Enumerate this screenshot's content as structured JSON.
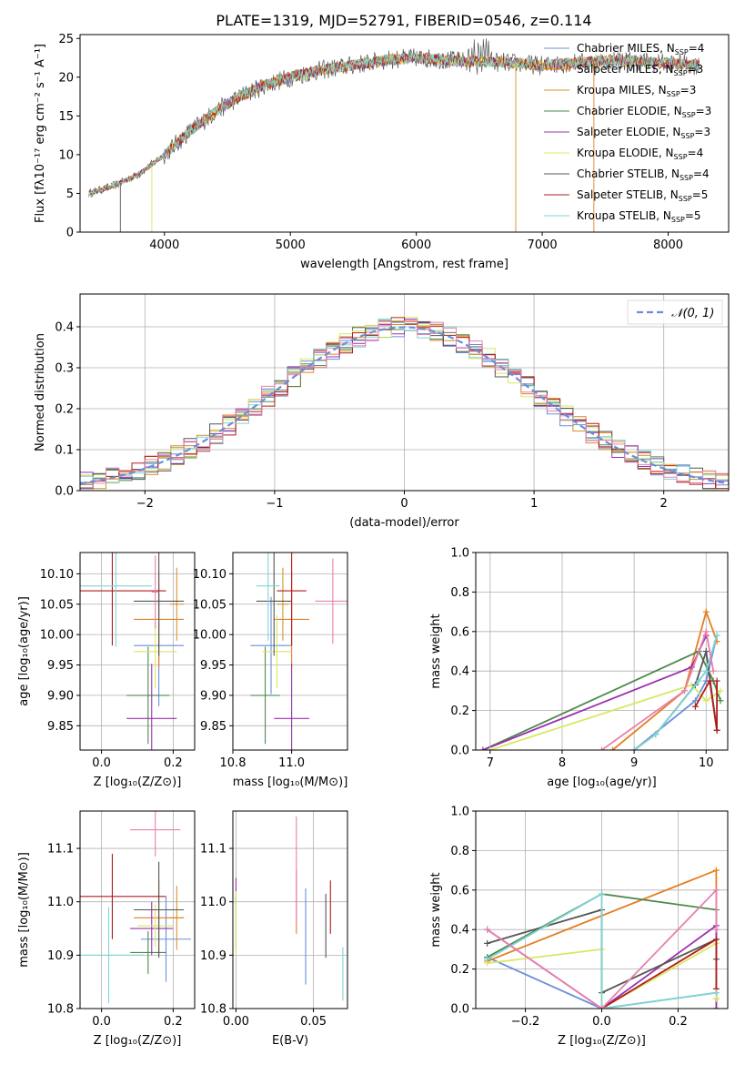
{
  "figure": {
    "title": "PLATE=1319, MJD=52791, FIBERID=0546, z=0.114"
  },
  "colors": {
    "c0": "#6a8fd8",
    "c1": "#e67e22",
    "c2": "#d4922a",
    "c3": "#4e8a4e",
    "c4": "#9b30b0",
    "c5": "#d8e860",
    "c6": "#555555",
    "c7": "#b01c1c",
    "c8": "#7fd4d4",
    "c9": "#e87fb0"
  },
  "chart_data": [
    {
      "id": "spectrum",
      "type": "line",
      "title": "PLATE=1319, MJD=52791, FIBERID=0546, z=0.114",
      "xlabel": "wavelength [Angstrom, rest frame]",
      "ylabel": "Flux [fλ10⁻¹⁷ erg cm⁻² s⁻¹ A⁻¹]",
      "xlim": [
        3330,
        8480
      ],
      "ylim": [
        0,
        25.5
      ],
      "xticks": [
        4000,
        5000,
        6000,
        7000,
        8000
      ],
      "yticks": [
        0,
        5,
        10,
        15,
        20,
        25
      ],
      "grid": false,
      "legend_position": "top-right",
      "continuum": {
        "x": [
          3400,
          3600,
          3800,
          4000,
          4200,
          4400,
          4600,
          4800,
          5000,
          5200,
          5400,
          5600,
          5800,
          6000,
          6200,
          6400,
          6600,
          6800,
          7000,
          7200,
          7400,
          7600,
          7800,
          8000,
          8250
        ],
        "y": [
          5.0,
          6.0,
          7.5,
          10.0,
          13.0,
          15.5,
          17.5,
          19.0,
          20.0,
          20.8,
          21.3,
          21.8,
          22.3,
          22.5,
          22.3,
          22.0,
          22.0,
          21.8,
          21.5,
          21.8,
          22.0,
          22.2,
          22.0,
          21.8,
          21.5
        ]
      },
      "legend": [
        {
          "label": "Chabrier MILES, N",
          "sub": "SSP",
          "suffix": "=4",
          "color": "#6a8fd8"
        },
        {
          "label": "Salpeter MILES, N",
          "sub": "SSP",
          "suffix": "=3",
          "color": "#e67e22"
        },
        {
          "label": "Kroupa MILES, N",
          "sub": "SSP",
          "suffix": "=3",
          "color": "#d4922a"
        },
        {
          "label": "Chabrier ELODIE, N",
          "sub": "SSP",
          "suffix": "=3",
          "color": "#4e8a4e"
        },
        {
          "label": "Salpeter ELODIE, N",
          "sub": "SSP",
          "suffix": "=3",
          "color": "#9b30b0"
        },
        {
          "label": "Kroupa ELODIE, N",
          "sub": "SSP",
          "suffix": "=4",
          "color": "#d8e860"
        },
        {
          "label": "Chabrier STELIB, N",
          "sub": "SSP",
          "suffix": "=4",
          "color": "#555555"
        },
        {
          "label": "Salpeter STELIB, N",
          "sub": "SSP",
          "suffix": "=5",
          "color": "#b01c1c"
        },
        {
          "label": "Kroupa STELIB, N",
          "sub": "SSP",
          "suffix": "=5",
          "color": "#7fd4d4"
        }
      ]
    },
    {
      "id": "residuals",
      "type": "line",
      "xlabel": "(data-model)/error",
      "ylabel": "Normed distribution",
      "xlim": [
        -2.5,
        2.5
      ],
      "ylim": [
        0,
        0.48
      ],
      "xticks": [
        -2,
        -1,
        0,
        1,
        2
      ],
      "yticks": [
        0.0,
        0.1,
        0.2,
        0.3,
        0.4
      ],
      "grid": true,
      "legend_position": "top-right",
      "legend": [
        {
          "label": "𝒩(0, 1)",
          "color": "#6a8fd8",
          "style": "dashed"
        }
      ],
      "gaussian": {
        "mean": 0,
        "sigma": 1
      },
      "hist_bin_width": 0.1
    },
    {
      "id": "age-vs-Z",
      "type": "errorbar",
      "xlabel": "Z [log₁₀(Z/Z⊙)]",
      "ylabel": "age  [log₁₀(age/yr)]",
      "xlim": [
        -0.06,
        0.26
      ],
      "ylim": [
        9.81,
        10.135
      ],
      "xticks": [
        0.0,
        0.2
      ],
      "yticks": [
        9.85,
        9.9,
        9.95,
        10.0,
        10.05,
        10.1
      ],
      "grid": true,
      "points": [
        {
          "x": 0.16,
          "y": 9.982,
          "xerr": 0.07,
          "yerr": 0.1,
          "color": "#6a8fd8"
        },
        {
          "x": 0.16,
          "y": 10.025,
          "xerr": 0.07,
          "yerr": 0.08,
          "color": "#e67e22"
        },
        {
          "x": 0.21,
          "y": 10.05,
          "xerr": 0.02,
          "yerr": 0.06,
          "color": "#d4922a"
        },
        {
          "x": 0.13,
          "y": 9.9,
          "xerr": 0.06,
          "yerr": 0.08,
          "color": "#4e8a4e"
        },
        {
          "x": 0.14,
          "y": 9.862,
          "xerr": 0.07,
          "yerr": 0.09,
          "color": "#9b30b0"
        },
        {
          "x": 0.15,
          "y": 9.972,
          "xerr": 0.06,
          "yerr": 0.06,
          "color": "#d8e860"
        },
        {
          "x": 0.16,
          "y": 10.055,
          "xerr": 0.07,
          "yerr": 0.09,
          "color": "#555555"
        },
        {
          "x": 0.03,
          "y": 10.072,
          "xerr": 0.15,
          "yerr": 0.09,
          "color": "#b01c1c"
        },
        {
          "x": 0.04,
          "y": 10.08,
          "xerr": 0.1,
          "yerr": 0.1,
          "color": "#7fd4d4"
        },
        {
          "x": 0.15,
          "y": 10.07,
          "xerr": 0.01,
          "yerr": 0.06,
          "color": "#e87fb0"
        }
      ]
    },
    {
      "id": "age-vs-mass",
      "type": "errorbar",
      "xlabel": "mass [log₁₀(M/M⊙)]",
      "ylabel": "",
      "xlim": [
        10.8,
        11.19
      ],
      "ylim": [
        9.81,
        10.135
      ],
      "xticks": [
        10.8,
        11.0
      ],
      "yticks": [
        9.85,
        9.9,
        9.95,
        10.0,
        10.05,
        10.1
      ],
      "grid": true,
      "points": [
        {
          "x": 10.93,
          "y": 9.982,
          "xerr": 0.07,
          "yerr": 0.08,
          "color": "#6a8fd8"
        },
        {
          "x": 11.0,
          "y": 10.025,
          "xerr": 0.06,
          "yerr": 0.08,
          "color": "#e67e22"
        },
        {
          "x": 10.97,
          "y": 10.05,
          "xerr": 0.02,
          "yerr": 0.06,
          "color": "#d4922a"
        },
        {
          "x": 10.91,
          "y": 9.9,
          "xerr": 0.05,
          "yerr": 0.08,
          "color": "#4e8a4e"
        },
        {
          "x": 11.0,
          "y": 9.862,
          "xerr": 0.06,
          "yerr": 0.09,
          "color": "#9b30b0"
        },
        {
          "x": 10.95,
          "y": 9.972,
          "xerr": 0.05,
          "yerr": 0.06,
          "color": "#d8e860"
        },
        {
          "x": 10.94,
          "y": 10.055,
          "xerr": 0.06,
          "yerr": 0.09,
          "color": "#555555"
        },
        {
          "x": 11.0,
          "y": 10.072,
          "xerr": 0.05,
          "yerr": 0.09,
          "color": "#b01c1c"
        },
        {
          "x": 10.92,
          "y": 10.08,
          "xerr": 0.04,
          "yerr": 0.09,
          "color": "#7fd4d4"
        },
        {
          "x": 11.14,
          "y": 10.055,
          "xerr": 0.06,
          "yerr": 0.07,
          "color": "#e87fb0"
        }
      ]
    },
    {
      "id": "mass-weight-vs-age",
      "type": "line",
      "xlabel": "age  [log₁₀(age/yr)]",
      "ylabel": "mass weight",
      "xlim": [
        6.8,
        10.3
      ],
      "ylim": [
        0,
        1
      ],
      "xticks": [
        7,
        8,
        9,
        10
      ],
      "yticks": [
        0.0,
        0.2,
        0.4,
        0.6,
        0.8,
        1.0
      ],
      "grid": true,
      "series": [
        {
          "x": [
            9.0,
            9.85,
            10.0,
            10.15
          ],
          "y": [
            0.0,
            0.25,
            0.35,
            0.58
          ],
          "color": "#6a8fd8"
        },
        {
          "x": [
            8.7,
            9.7,
            10.0,
            10.15
          ],
          "y": [
            0.0,
            0.3,
            0.7,
            0.55
          ],
          "color": "#e67e22"
        },
        {
          "x": [
            6.9,
            9.9,
            10.1,
            10.2
          ],
          "y": [
            0.0,
            0.5,
            0.35,
            0.25
          ],
          "color": "#4e8a4e"
        },
        {
          "x": [
            6.9,
            9.8,
            10.0
          ],
          "y": [
            0.0,
            0.42,
            0.58
          ],
          "color": "#9b30b0"
        },
        {
          "x": [
            7.0,
            9.8,
            10.0,
            10.2
          ],
          "y": [
            0.0,
            0.33,
            0.25,
            0.3
          ],
          "color": "#d8e860"
        },
        {
          "x": [
            9.0,
            9.3,
            9.85,
            10.0,
            10.15
          ],
          "y": [
            0.0,
            0.08,
            0.33,
            0.5,
            0.1
          ],
          "color": "#555555"
        },
        {
          "x": [
            9.85,
            10.05,
            10.15,
            10.15
          ],
          "y": [
            0.22,
            0.35,
            0.1,
            0.35
          ],
          "color": "#b01c1c"
        },
        {
          "x": [
            9.0,
            9.3,
            9.9,
            10.0,
            10.15
          ],
          "y": [
            0.0,
            0.08,
            0.35,
            0.4,
            0.58
          ],
          "color": "#7fd4d4"
        },
        {
          "x": [
            8.55,
            9.7,
            10.0,
            10.1
          ],
          "y": [
            0.0,
            0.3,
            0.6,
            0.4
          ],
          "color": "#e87fb0"
        }
      ]
    },
    {
      "id": "mass-vs-Z",
      "type": "errorbar",
      "xlabel": "Z [log₁₀(Z/Z⊙)]",
      "ylabel": "mass [log₁₀(M/M⊙)]",
      "xlim": [
        -0.06,
        0.26
      ],
      "ylim": [
        10.8,
        11.17
      ],
      "xticks": [
        0.0,
        0.2
      ],
      "yticks": [
        10.8,
        10.9,
        11.0,
        11.1
      ],
      "grid": true,
      "points": [
        {
          "x": 0.18,
          "y": 10.93,
          "xerr": 0.07,
          "yerr": 0.08,
          "color": "#6a8fd8"
        },
        {
          "x": 0.16,
          "y": 10.97,
          "xerr": 0.07,
          "yerr": 0.07,
          "color": "#e67e22"
        },
        {
          "x": 0.21,
          "y": 10.97,
          "xerr": 0.02,
          "yerr": 0.06,
          "color": "#d4922a"
        },
        {
          "x": 0.13,
          "y": 10.905,
          "xerr": 0.05,
          "yerr": 0.04,
          "color": "#4e8a4e"
        },
        {
          "x": 0.14,
          "y": 10.95,
          "xerr": 0.06,
          "yerr": 0.05,
          "color": "#9b30b0"
        },
        {
          "x": 0.15,
          "y": 10.955,
          "xerr": 0.05,
          "yerr": 0.04,
          "color": "#d8e860"
        },
        {
          "x": 0.16,
          "y": 10.985,
          "xerr": 0.07,
          "yerr": 0.09,
          "color": "#555555"
        },
        {
          "x": 0.03,
          "y": 11.01,
          "xerr": 0.15,
          "yerr": 0.08,
          "color": "#b01c1c"
        },
        {
          "x": 0.02,
          "y": 10.9,
          "xerr": 0.1,
          "yerr": 0.09,
          "color": "#7fd4d4"
        },
        {
          "x": 0.15,
          "y": 11.135,
          "xerr": 0.07,
          "yerr": 0.05,
          "color": "#e87fb0"
        }
      ]
    },
    {
      "id": "mass-vs-EBV",
      "type": "errorbar",
      "xlabel": "E(B-V)",
      "ylabel": "",
      "xlim": [
        -0.002,
        0.072
      ],
      "ylim": [
        10.8,
        11.17
      ],
      "xticks": [
        0.0,
        0.05
      ],
      "yticks": [
        10.8,
        10.9,
        11.0,
        11.1
      ],
      "grid": true,
      "points": [
        {
          "x": 0.045,
          "y": 10.935,
          "xerr": 0.0,
          "yerr": 0.09,
          "color": "#6a8fd8"
        },
        {
          "x": 0.039,
          "y": 11.0,
          "xerr": 0.0,
          "yerr": 0.06,
          "color": "#e67e22"
        },
        {
          "x": 0.0,
          "y": 10.96,
          "xerr": 0.0,
          "yerr": 0.05,
          "color": "#4e8a4e"
        },
        {
          "x": 0.0,
          "y": 11.02,
          "xerr": 0.0,
          "yerr": 0.025,
          "color": "#9b30b0"
        },
        {
          "x": 0.0,
          "y": 10.96,
          "xerr": 0.0,
          "yerr": 0.06,
          "color": "#d8e860"
        },
        {
          "x": 0.058,
          "y": 10.955,
          "xerr": 0.0,
          "yerr": 0.06,
          "color": "#555555"
        },
        {
          "x": 0.061,
          "y": 10.99,
          "xerr": 0.0,
          "yerr": 0.05,
          "color": "#b01c1c"
        },
        {
          "x": 0.069,
          "y": 10.865,
          "xerr": 0.0,
          "yerr": 0.05,
          "color": "#7fd4d4"
        },
        {
          "x": 0.039,
          "y": 11.06,
          "xerr": 0.0,
          "yerr": 0.1,
          "color": "#e87fb0"
        }
      ]
    },
    {
      "id": "mass-weight-vs-Z",
      "type": "line",
      "xlabel": "Z [log₁₀(Z/Z⊙)]",
      "ylabel": "mass weight",
      "xlim": [
        -0.33,
        0.33
      ],
      "ylim": [
        0,
        1
      ],
      "xticks": [
        -0.2,
        0.0,
        0.2
      ],
      "yticks": [
        0.0,
        0.2,
        0.4,
        0.6,
        0.8,
        1.0
      ],
      "grid": true,
      "series": [
        {
          "x": [
            -0.3,
            0.0,
            0.3
          ],
          "y": [
            0.26,
            0.0,
            0.08
          ],
          "color": "#6a8fd8"
        },
        {
          "x": [
            -0.3,
            0.3,
            0.3
          ],
          "y": [
            0.24,
            0.7,
            0.05
          ],
          "color": "#e67e22"
        },
        {
          "x": [
            -0.3,
            0.0,
            0.3,
            0.3
          ],
          "y": [
            0.26,
            0.58,
            0.5,
            0.0
          ],
          "color": "#4e8a4e"
        },
        {
          "x": [
            -0.3,
            0.0,
            0.3,
            0.3
          ],
          "y": [
            0.4,
            0.0,
            0.42,
            0.0
          ],
          "color": "#9b30b0"
        },
        {
          "x": [
            -0.3,
            0.0,
            0.0,
            0.3,
            0.3
          ],
          "y": [
            0.23,
            0.3,
            0.0,
            0.33,
            0.05
          ],
          "color": "#d8e860"
        },
        {
          "x": [
            -0.3,
            0.0,
            0.0,
            0.3,
            0.3
          ],
          "y": [
            0.33,
            0.5,
            0.08,
            0.35,
            0.25
          ],
          "color": "#555555"
        },
        {
          "x": [
            0.0,
            0.3,
            0.3
          ],
          "y": [
            0.0,
            0.35,
            0.1
          ],
          "color": "#b01c1c"
        },
        {
          "x": [
            -0.3,
            0.0,
            0.0,
            0.3
          ],
          "y": [
            0.25,
            0.58,
            0.0,
            0.08
          ],
          "color": "#7fd4d4"
        },
        {
          "x": [
            -0.3,
            0.0,
            0.3,
            0.3
          ],
          "y": [
            0.4,
            0.0,
            0.6,
            0.4
          ],
          "color": "#e87fb0"
        }
      ]
    }
  ]
}
